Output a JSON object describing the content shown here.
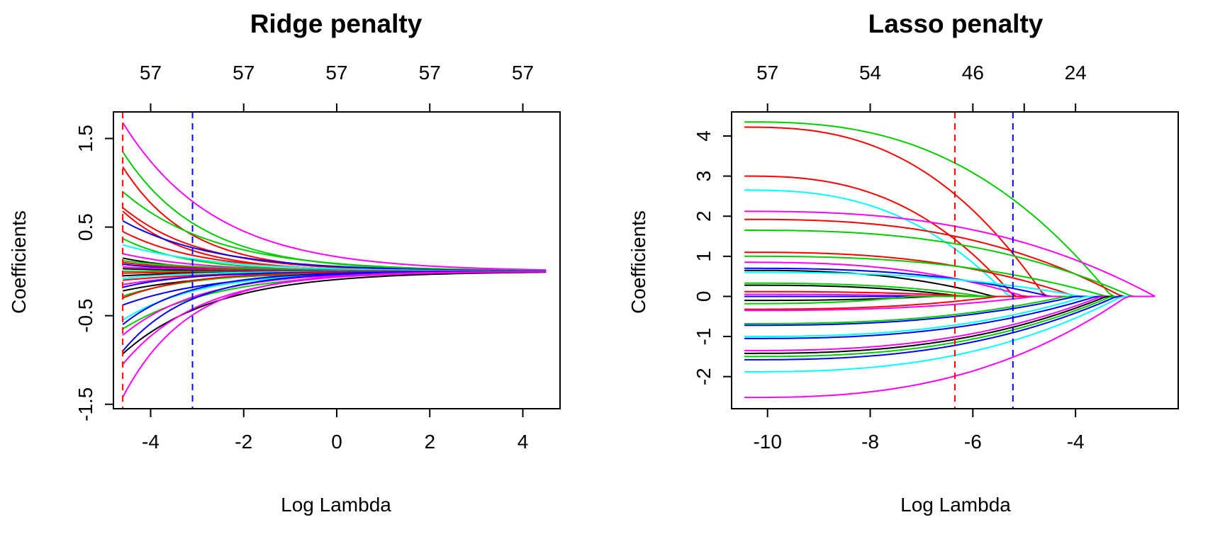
{
  "chart_data": [
    {
      "type": "line",
      "title": "Ridge penalty",
      "xlabel": "Log Lambda",
      "ylabel": "Coefficients",
      "xlim": [
        -4.8,
        4.8
      ],
      "ylim": [
        -1.55,
        1.8
      ],
      "x_ticks": [
        "-4",
        "-2",
        "0",
        "2",
        "4"
      ],
      "y_ticks": [
        "-1.5",
        "-0.5",
        "0.5",
        "1.5"
      ],
      "top_axis": {
        "x": [
          -4,
          -2,
          0,
          2,
          4
        ],
        "labels": [
          "57",
          "57",
          "57",
          "57",
          "57"
        ]
      },
      "vlines": [
        {
          "x": -4.6,
          "color": "#ff0000",
          "style": "dashed"
        },
        {
          "x": -3.1,
          "color": "#0000ff",
          "style": "dashed"
        }
      ],
      "x_range": [
        -4.6,
        4.5
      ],
      "series": [
        {
          "start": 1.68,
          "color": "#ff00ff"
        },
        {
          "start": 1.35,
          "color": "#00cd00"
        },
        {
          "start": 1.18,
          "color": "#ff0000"
        },
        {
          "start": 0.9,
          "color": "#00cd00"
        },
        {
          "start": 0.72,
          "color": "#ff0000"
        },
        {
          "start": 0.68,
          "color": "#ff0000"
        },
        {
          "start": 0.57,
          "color": "#0000ff"
        },
        {
          "start": 0.45,
          "color": "#ff0000"
        },
        {
          "start": 0.37,
          "color": "#00cd00"
        },
        {
          "start": 0.3,
          "color": "#00ffff"
        },
        {
          "start": 0.2,
          "color": "#ff00ff"
        },
        {
          "start": 0.15,
          "color": "#000000"
        },
        {
          "start": 0.12,
          "color": "#00cd00"
        },
        {
          "start": 0.1,
          "color": "#ff0000"
        },
        {
          "start": 0.08,
          "color": "#0000ff"
        },
        {
          "start": 0.05,
          "color": "#ff00ff"
        },
        {
          "start": 0.03,
          "color": "#000000"
        },
        {
          "start": 0.0,
          "color": "#00cd00"
        },
        {
          "start": -0.02,
          "color": "#ff0000"
        },
        {
          "start": -0.05,
          "color": "#000000"
        },
        {
          "start": -0.08,
          "color": "#00ffff"
        },
        {
          "start": -0.1,
          "color": "#ff0000"
        },
        {
          "start": -0.15,
          "color": "#ff00ff"
        },
        {
          "start": -0.18,
          "color": "#0000ff"
        },
        {
          "start": -0.22,
          "color": "#000000"
        },
        {
          "start": -0.28,
          "color": "#00cd00"
        },
        {
          "start": -0.3,
          "color": "#ff0000"
        },
        {
          "start": -0.38,
          "color": "#0000ff"
        },
        {
          "start": -0.55,
          "color": "#00ffff"
        },
        {
          "start": -0.6,
          "color": "#0000ff"
        },
        {
          "start": -0.65,
          "color": "#00cd00"
        },
        {
          "start": -0.72,
          "color": "#ff00ff"
        },
        {
          "start": -0.9,
          "color": "#0000ff"
        },
        {
          "start": -0.93,
          "color": "#000000"
        },
        {
          "start": -1.05,
          "color": "#ff00ff"
        },
        {
          "start": -1.42,
          "color": "#ff00ff"
        }
      ]
    },
    {
      "type": "line",
      "title": "Lasso penalty",
      "xlabel": "Log Lambda",
      "ylabel": "Coefficients",
      "xlim": [
        -10.7,
        -2.0
      ],
      "ylim": [
        -2.8,
        4.6
      ],
      "x_ticks": [
        "-10",
        "-8",
        "-6",
        "-4"
      ],
      "y_ticks": [
        "-2",
        "-1",
        "0",
        "1",
        "2",
        "3",
        "4"
      ],
      "top_axis": {
        "x": [
          -10,
          -8,
          -6,
          -5,
          -4
        ],
        "labels": [
          "57",
          "54",
          "46",
          "",
          "24"
        ]
      },
      "vlines": [
        {
          "x": -6.35,
          "color": "#ff0000",
          "style": "dashed"
        },
        {
          "x": -5.22,
          "color": "#0000ff",
          "style": "dashed"
        }
      ],
      "x_range": [
        -10.45,
        -2.45
      ],
      "series": [
        {
          "start": 4.35,
          "end_x": -3.3,
          "color": "#00cd00"
        },
        {
          "start": 4.22,
          "end_x": -4.6,
          "color": "#ff0000"
        },
        {
          "start": 3.0,
          "end_x": -5.2,
          "color": "#ff0000"
        },
        {
          "start": 2.65,
          "end_x": -5.3,
          "color": "#00ffff"
        },
        {
          "start": 2.12,
          "end_x": -2.45,
          "color": "#ff00ff"
        },
        {
          "start": 1.92,
          "end_x": -3.1,
          "color": "#ff0000"
        },
        {
          "start": 1.65,
          "end_x": -2.9,
          "color": "#00cd00"
        },
        {
          "start": 1.1,
          "end_x": -4.0,
          "color": "#ff0000"
        },
        {
          "start": 1.0,
          "end_x": -3.4,
          "color": "#00cd00"
        },
        {
          "start": 0.85,
          "end_x": -5.0,
          "color": "#ff00ff"
        },
        {
          "start": 0.7,
          "end_x": -4.5,
          "color": "#0000ff"
        },
        {
          "start": 0.65,
          "end_x": -5.6,
          "color": "#000000"
        },
        {
          "start": 0.6,
          "end_x": -3.9,
          "color": "#00ffff"
        },
        {
          "start": 0.33,
          "end_x": -5.8,
          "color": "#00cd00"
        },
        {
          "start": 0.28,
          "end_x": -6.2,
          "color": "#000000"
        },
        {
          "start": 0.12,
          "end_x": -6.0,
          "color": "#ff0000"
        },
        {
          "start": 0.05,
          "end_x": -6.5,
          "color": "#ff00ff"
        },
        {
          "start": 0.0,
          "end_x": -7.0,
          "color": "#0000ff"
        },
        {
          "start": -0.1,
          "end_x": -6.8,
          "color": "#000000"
        },
        {
          "start": -0.18,
          "end_x": -7.2,
          "color": "#00cd00"
        },
        {
          "start": -0.32,
          "end_x": -5.5,
          "color": "#ff0000"
        },
        {
          "start": -0.35,
          "end_x": -4.8,
          "color": "#ff00ff"
        },
        {
          "start": -0.68,
          "end_x": -4.2,
          "color": "#00cd00"
        },
        {
          "start": -0.72,
          "end_x": -4.0,
          "color": "#0000ff"
        },
        {
          "start": -1.0,
          "end_x": -3.8,
          "color": "#00ffff"
        },
        {
          "start": -1.05,
          "end_x": -3.6,
          "color": "#0000ff"
        },
        {
          "start": -1.35,
          "end_x": -3.5,
          "color": "#ff00ff"
        },
        {
          "start": -1.42,
          "end_x": -3.4,
          "color": "#000000"
        },
        {
          "start": -1.5,
          "end_x": -3.3,
          "color": "#00cd00"
        },
        {
          "start": -1.58,
          "end_x": -3.2,
          "color": "#0000ff"
        },
        {
          "start": -1.88,
          "end_x": -3.1,
          "color": "#00ffff"
        },
        {
          "start": -2.52,
          "end_x": -3.0,
          "color": "#ff00ff"
        }
      ]
    }
  ]
}
